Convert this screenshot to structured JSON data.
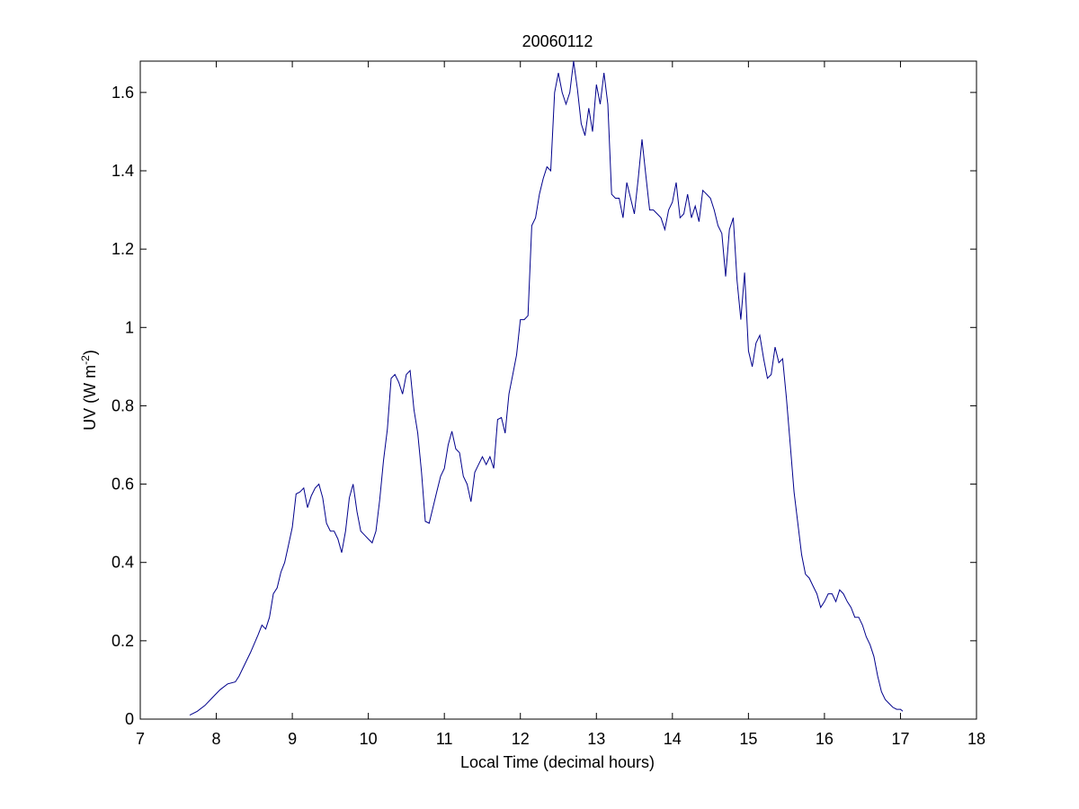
{
  "chart_data": {
    "type": "line",
    "title": "20060112",
    "xlabel": "Local Time (decimal hours)",
    "ylabel": {
      "main": "UV (W m",
      "superscript": "-2",
      "close": ")"
    },
    "xlim": [
      7,
      18
    ],
    "ylim": [
      0,
      1.68
    ],
    "xticks": [
      7,
      8,
      9,
      10,
      11,
      12,
      13,
      14,
      15,
      16,
      17,
      18
    ],
    "yticks": [
      0,
      0.2,
      0.4,
      0.6,
      0.8,
      1,
      1.2,
      1.4,
      1.6
    ],
    "xtick_labels": [
      "7",
      "8",
      "9",
      "10",
      "11",
      "12",
      "13",
      "14",
      "15",
      "16",
      "17",
      "18"
    ],
    "ytick_labels": [
      "0",
      "0.2",
      "0.4",
      "0.6",
      "0.8",
      "1",
      "1.2",
      "1.4",
      "1.6"
    ],
    "grid": false,
    "line_color": "#00008b",
    "series": [
      {
        "x": [
          7.65,
          7.75,
          7.85,
          7.95,
          8.05,
          8.15,
          8.25,
          8.3,
          8.35,
          8.45,
          8.55,
          8.6,
          8.65,
          8.7,
          8.75,
          8.8,
          8.85,
          8.9,
          8.95,
          9.0,
          9.05,
          9.1,
          9.15,
          9.2,
          9.25,
          9.3,
          9.35,
          9.4,
          9.45,
          9.5,
          9.55,
          9.6,
          9.65,
          9.7,
          9.75,
          9.8,
          9.85,
          9.9,
          9.95,
          10.0,
          10.05,
          10.1,
          10.15,
          10.2,
          10.25,
          10.3,
          10.35,
          10.4,
          10.45,
          10.5,
          10.55,
          10.6,
          10.65,
          10.7,
          10.75,
          10.8,
          10.85,
          10.9,
          10.95,
          11.0,
          11.05,
          11.1,
          11.15,
          11.2,
          11.25,
          11.3,
          11.35,
          11.4,
          11.45,
          11.5,
          11.55,
          11.6,
          11.65,
          11.7,
          11.75,
          11.8,
          11.85,
          11.9,
          11.95,
          12.0,
          12.05,
          12.1,
          12.15,
          12.2,
          12.25,
          12.3,
          12.35,
          12.4,
          12.45,
          12.5,
          12.55,
          12.6,
          12.65,
          12.7,
          12.75,
          12.8,
          12.85,
          12.9,
          12.95,
          13.0,
          13.05,
          13.1,
          13.15,
          13.2,
          13.25,
          13.3,
          13.35,
          13.4,
          13.45,
          13.5,
          13.55,
          13.6,
          13.65,
          13.7,
          13.75,
          13.8,
          13.85,
          13.9,
          13.95,
          14.0,
          14.05,
          14.1,
          14.15,
          14.2,
          14.25,
          14.3,
          14.35,
          14.4,
          14.45,
          14.5,
          14.55,
          14.6,
          14.65,
          14.7,
          14.75,
          14.8,
          14.85,
          14.9,
          14.95,
          15.0,
          15.05,
          15.1,
          15.15,
          15.2,
          15.25,
          15.3,
          15.35,
          15.4,
          15.45,
          15.5,
          15.55,
          15.6,
          15.65,
          15.7,
          15.75,
          15.8,
          15.85,
          15.9,
          15.95,
          16.0,
          16.05,
          16.1,
          16.15,
          16.2,
          16.25,
          16.3,
          16.35,
          16.4,
          16.45,
          16.5,
          16.55,
          16.6,
          16.65,
          16.7,
          16.75,
          16.8,
          16.85,
          16.9,
          16.95,
          17.0,
          17.03
        ],
        "y": [
          0.01,
          0.02,
          0.035,
          0.055,
          0.075,
          0.09,
          0.095,
          0.11,
          0.13,
          0.17,
          0.215,
          0.24,
          0.23,
          0.26,
          0.32,
          0.335,
          0.375,
          0.4,
          0.445,
          0.49,
          0.575,
          0.58,
          0.59,
          0.54,
          0.57,
          0.59,
          0.6,
          0.565,
          0.5,
          0.48,
          0.48,
          0.46,
          0.425,
          0.48,
          0.565,
          0.6,
          0.53,
          0.48,
          0.47,
          0.46,
          0.45,
          0.48,
          0.56,
          0.66,
          0.74,
          0.87,
          0.88,
          0.86,
          0.83,
          0.88,
          0.89,
          0.79,
          0.73,
          0.63,
          0.505,
          0.5,
          0.54,
          0.58,
          0.62,
          0.64,
          0.7,
          0.735,
          0.69,
          0.68,
          0.62,
          0.6,
          0.555,
          0.63,
          0.65,
          0.67,
          0.65,
          0.67,
          0.64,
          0.765,
          0.77,
          0.73,
          0.83,
          0.88,
          0.93,
          1.02,
          1.02,
          1.03,
          1.26,
          1.28,
          1.34,
          1.38,
          1.41,
          1.4,
          1.6,
          1.65,
          1.6,
          1.57,
          1.6,
          1.68,
          1.61,
          1.52,
          1.49,
          1.56,
          1.5,
          1.62,
          1.57,
          1.65,
          1.57,
          1.34,
          1.33,
          1.33,
          1.28,
          1.37,
          1.33,
          1.29,
          1.38,
          1.48,
          1.39,
          1.3,
          1.3,
          1.29,
          1.28,
          1.25,
          1.3,
          1.32,
          1.37,
          1.28,
          1.29,
          1.34,
          1.28,
          1.31,
          1.27,
          1.35,
          1.34,
          1.33,
          1.3,
          1.26,
          1.24,
          1.13,
          1.25,
          1.28,
          1.12,
          1.02,
          1.14,
          0.94,
          0.9,
          0.96,
          0.98,
          0.92,
          0.87,
          0.88,
          0.95,
          0.91,
          0.92,
          0.82,
          0.7,
          0.58,
          0.5,
          0.42,
          0.37,
          0.36,
          0.34,
          0.32,
          0.285,
          0.3,
          0.32,
          0.32,
          0.3,
          0.33,
          0.32,
          0.3,
          0.285,
          0.26,
          0.26,
          0.24,
          0.21,
          0.19,
          0.16,
          0.11,
          0.07,
          0.05,
          0.04,
          0.03,
          0.025,
          0.025,
          0.02
        ]
      }
    ]
  }
}
